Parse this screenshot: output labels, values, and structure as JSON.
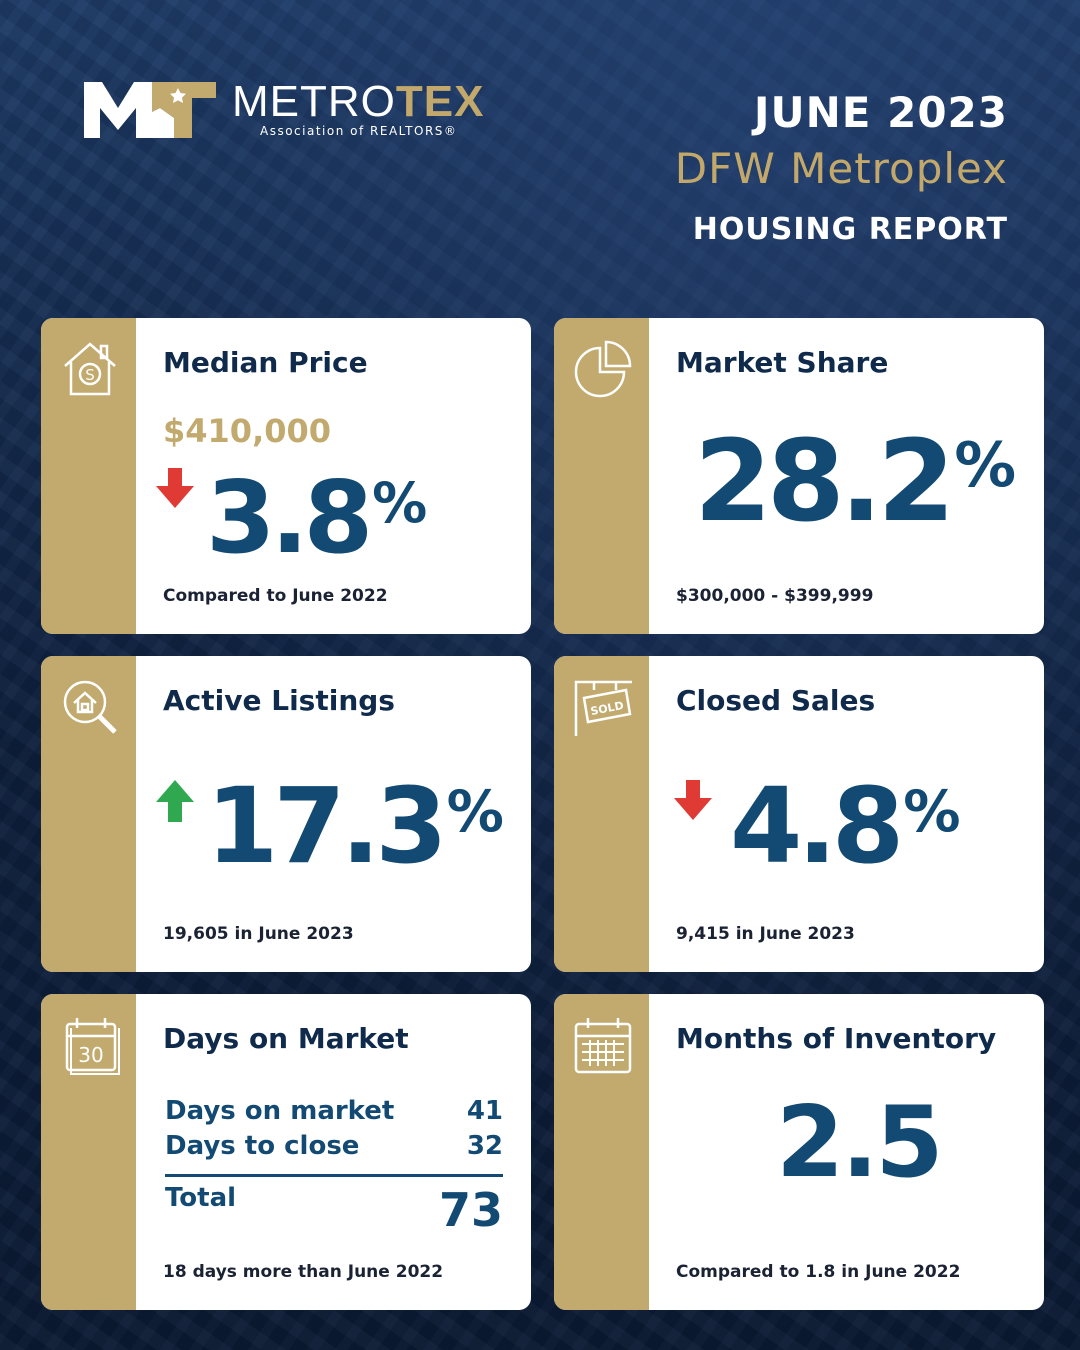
{
  "header": {
    "logo": {
      "name_white": "METRO",
      "name_gold": "TEX",
      "subtitle": "Association of REALTORS®"
    },
    "month": "JUNE 2023",
    "region": "DFW Metroplex",
    "report": "HOUSING REPORT"
  },
  "colors": {
    "navy": "#0d1b33",
    "gold": "#c2a96e",
    "value_blue": "#134a73",
    "up_green": "#2fa84f",
    "down_red": "#e03a35"
  },
  "cards": {
    "median_price": {
      "icon": "house-dollar-icon",
      "title": "Median Price",
      "price": "$410,000",
      "direction": "down",
      "value": "3.8",
      "unit": "%",
      "footnote": "Compared to June 2022"
    },
    "market_share": {
      "icon": "pie-chart-icon",
      "title": "Market Share",
      "value": "28.2",
      "unit": "%",
      "footnote": "$300,000 - $399,999"
    },
    "active_listings": {
      "icon": "house-search-icon",
      "title": "Active Listings",
      "direction": "up",
      "value": "17.3",
      "unit": "%",
      "footnote": "19,605 in June 2023"
    },
    "closed_sales": {
      "icon": "sold-sign-icon",
      "title": "Closed Sales",
      "direction": "down",
      "value": "4.8",
      "unit": "%",
      "footnote": "9,415 in June 2023"
    },
    "days_on_market": {
      "icon": "calendar-30-icon",
      "icon_text": "30",
      "title": "Days on Market",
      "rows": [
        {
          "label": "Days on market",
          "value": "41"
        },
        {
          "label": "Days to close",
          "value": "32"
        }
      ],
      "total_label": "Total",
      "total_value": "73",
      "footnote": "18 days more than June 2022"
    },
    "months_inventory": {
      "icon": "calendar-grid-icon",
      "title": "Months of Inventory",
      "value": "2.5",
      "footnote": "Compared to 1.8 in June 2022"
    }
  }
}
